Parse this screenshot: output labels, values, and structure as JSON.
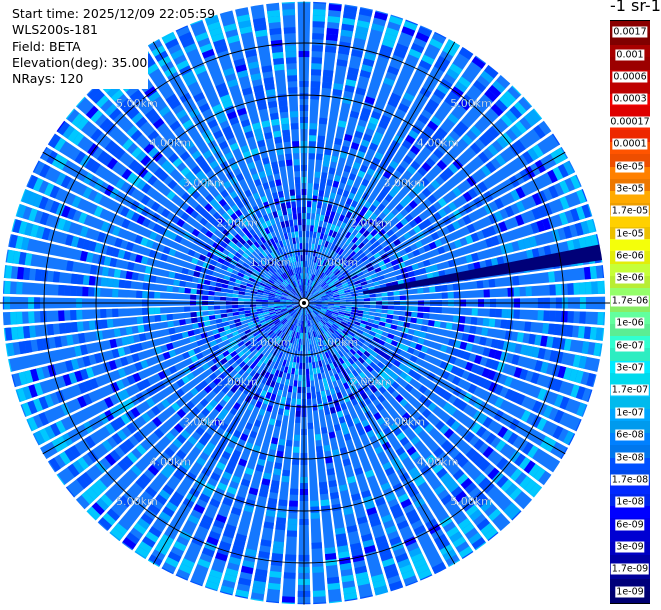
{
  "info": {
    "start_time": "Start time: 2025/12/09 22:05:59",
    "instrument": "WLS200s-181",
    "field": "Field: BETA",
    "elevation": "Elevation(deg): 35.00",
    "nrays": "NRays: 120"
  },
  "colorbar": {
    "title": "-1 sr-1",
    "ticks": [
      "1e-09",
      "1.7e-09",
      "3e-09",
      "6e-09",
      "1e-08",
      "1.7e-08",
      "3e-08",
      "6e-08",
      "1e-07",
      "1.7e-07",
      "3e-07",
      "6e-07",
      "1e-06",
      "1.7e-06",
      "3e-06",
      "6e-06",
      "1e-05",
      "1.7e-05",
      "3e-05",
      "6e-05",
      "0.0001",
      "0.00017",
      "0.0003",
      "0.0006",
      "0.001",
      "0.0017"
    ],
    "colors": [
      "#00007a",
      "#0000a8",
      "#0000d2",
      "#0000ff",
      "#0028ff",
      "#0050ff",
      "#0080ff",
      "#00a6ff",
      "#00c8ff",
      "#00eaff",
      "#30ffd0",
      "#62ff9e",
      "#94ff6a",
      "#c6ff38",
      "#f4ff0a",
      "#ffd000",
      "#ffaa00",
      "#ff8000",
      "#ff5400",
      "#ff2a00",
      "#f00000",
      "#cc0000",
      "#a80000",
      "#8a0000"
    ]
  },
  "chart_data": {
    "type": "heatmap",
    "projection": "polar",
    "title": "",
    "field": "BETA",
    "units": "sr-1",
    "nrays": 120,
    "range_rings_km": [
      1,
      2,
      3,
      4,
      5
    ],
    "range_labels": [
      "1.00km",
      "2.00km",
      "3.00km",
      "4.00km",
      "5.00km"
    ],
    "max_range_km": 5.8,
    "dominant_value_range": [
      "3e-08",
      "1e-07"
    ],
    "near_range_value_range": [
      "1e-09",
      "3e-08"
    ],
    "strong_ray": {
      "azimuth_deg": 80,
      "value": "1e-09"
    },
    "grid": true
  }
}
